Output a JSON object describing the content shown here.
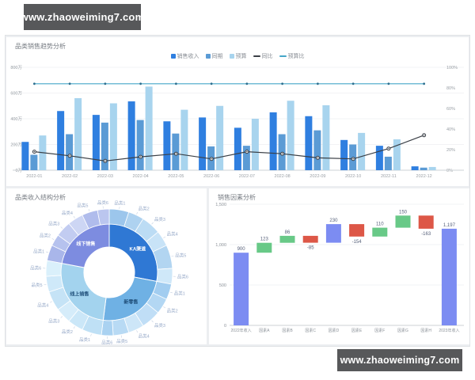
{
  "banners": {
    "top": "www.zhaoweiming7.com",
    "bottom": "www.zhaoweiming7.com"
  },
  "chart_data": [
    {
      "type": "bar",
      "title": "品类销售趋势分析",
      "categories": [
        "2022-01",
        "2022-02",
        "2022-03",
        "2022-04",
        "2022-05",
        "2022-06",
        "2022-07",
        "2022-08",
        "2022-09",
        "2022-10",
        "2022-11",
        "2022-12"
      ],
      "y_axis_left": {
        "ticks": [
          "800万",
          "600万",
          "400万",
          "200万",
          "0万"
        ],
        "max": 800,
        "unit": "万"
      },
      "y_axis_right": {
        "ticks": [
          "100%",
          "80%",
          "60%",
          "40%",
          "20%",
          "0%"
        ],
        "max": 100,
        "unit": "%"
      },
      "series": [
        {
          "name": "销售收入",
          "type": "bar",
          "color": "#2f7fe0",
          "values": [
            220,
            460,
            430,
            535,
            380,
            410,
            330,
            450,
            420,
            235,
            190,
            30
          ]
        },
        {
          "name": "同期",
          "type": "bar",
          "color": "#5b9bd5",
          "values": [
            120,
            280,
            370,
            390,
            285,
            185,
            190,
            280,
            310,
            200,
            105,
            20
          ]
        },
        {
          "name": "预算",
          "type": "bar",
          "color": "#a8d4ee",
          "values": [
            270,
            560,
            520,
            650,
            470,
            500,
            400,
            540,
            505,
            290,
            240,
            25
          ]
        },
        {
          "name": "同比",
          "type": "line",
          "color": "#3a3f46",
          "marker": "ring",
          "values": [
            18,
            14,
            9,
            13,
            16,
            11,
            18,
            16,
            12,
            11,
            21,
            34
          ]
        },
        {
          "name": "预算比",
          "type": "line",
          "color": "#45a6c8",
          "marker": "dot",
          "marker_color": "#2c6e8e",
          "values": [
            84,
            84,
            84,
            84,
            84,
            84,
            84,
            84,
            84,
            84,
            84,
            84
          ]
        }
      ],
      "legend_position": "top-center",
      "grid": true
    },
    {
      "type": "sunburst",
      "title": "品类收入结构分析",
      "groups": [
        {
          "name": "KA渠道",
          "value": 28,
          "color": "#2f78d4",
          "label_color": "#ffffff",
          "child_colors": [
            "#9cc6ec",
            "#aed2f0",
            "#bcdcf4",
            "#c8e3f7",
            "#b2d5f1",
            "#cfe8f9"
          ],
          "children": [
            {
              "name": "品类1",
              "value": 5
            },
            {
              "name": "品类2",
              "value": 4
            },
            {
              "name": "品类3",
              "value": 5
            },
            {
              "name": "品类4",
              "value": 4
            },
            {
              "name": "品类5",
              "value": 6
            },
            {
              "name": "品类6",
              "value": 4
            }
          ]
        },
        {
          "name": "新零售",
          "value": 24,
          "color": "#6fb1e4",
          "label_color": "#1f4e79",
          "child_colors": [
            "#a2cdf0",
            "#b3d7f3",
            "#c0def6",
            "#cde6f8",
            "#b8daf4",
            "#aad2f1"
          ],
          "children": [
            {
              "name": "品类1",
              "value": 4
            },
            {
              "name": "品类2",
              "value": 4
            },
            {
              "name": "品类3",
              "value": 5
            },
            {
              "name": "品类4",
              "value": 4
            },
            {
              "name": "品类5",
              "value": 4
            },
            {
              "name": "品类6",
              "value": 3
            }
          ]
        },
        {
          "name": "线上销售",
          "value": 26,
          "color": "#a3d3ee",
          "label_color": "#1f4e79",
          "child_colors": [
            "#bfe0f5",
            "#cbe7f8",
            "#d5ecfa",
            "#c5e3f6",
            "#cfe9f9",
            "#daf0fb"
          ],
          "children": [
            {
              "name": "品类1",
              "value": 5
            },
            {
              "name": "品类2",
              "value": 4
            },
            {
              "name": "品类3",
              "value": 4
            },
            {
              "name": "品类4",
              "value": 5
            },
            {
              "name": "品类5",
              "value": 4
            },
            {
              "name": "品类6",
              "value": 4
            }
          ]
        },
        {
          "name": "线下销售",
          "value": 22,
          "color": "#7d8ce0",
          "label_color": "#ffffff",
          "child_colors": [
            "#a9b6ea",
            "#b6c2ee",
            "#c2ccf1",
            "#cdd6f4",
            "#b0bcec",
            "#bbc6ef"
          ],
          "children": [
            {
              "name": "品类1",
              "value": 4
            },
            {
              "name": "品类2",
              "value": 3
            },
            {
              "name": "品类3",
              "value": 4
            },
            {
              "name": "品类4",
              "value": 4
            },
            {
              "name": "品类5",
              "value": 4
            },
            {
              "name": "品类6",
              "value": 3
            }
          ]
        }
      ]
    },
    {
      "type": "waterfall",
      "title": "销售因素分析",
      "categories": [
        "2022年收入",
        "因素A",
        "因素B",
        "因素C",
        "因素D",
        "因素E",
        "因素F",
        "因素G",
        "因素H",
        "2023年收入"
      ],
      "values": [
        900,
        123,
        86,
        -85,
        230,
        -154,
        110,
        150,
        -163,
        1197
      ],
      "kinds": [
        "total",
        "delta",
        "delta",
        "delta",
        "delta",
        "delta",
        "delta",
        "delta",
        "delta",
        "total"
      ],
      "labels": [
        "900",
        "123",
        "86",
        "-85",
        "230",
        "-154",
        "110",
        "150",
        "-163",
        "1,197"
      ],
      "bar_colors": [
        "#7c8cf2",
        "#68c987",
        "#68c987",
        "#dd5747",
        "#7c8cf2",
        "#dd5747",
        "#68c987",
        "#68c987",
        "#dd5747",
        "#7c8cf2"
      ],
      "ytick_labels": [
        "1,500",
        "1,000",
        "500",
        "0"
      ],
      "ytick_values": [
        1500,
        1000,
        500,
        0
      ],
      "ylim": [
        0,
        1500
      ],
      "grid": true
    }
  ]
}
